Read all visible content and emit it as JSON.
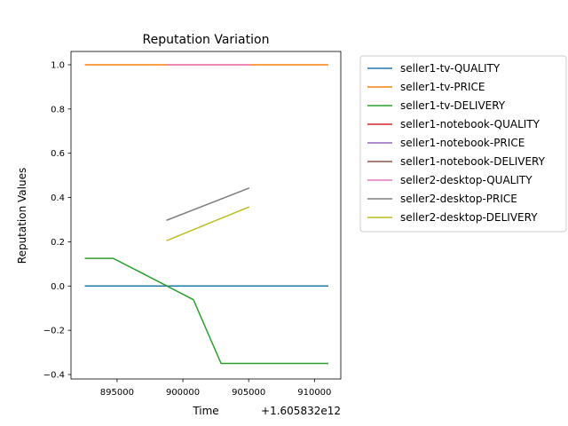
{
  "chart_data": {
    "type": "line",
    "title": "Reputation Variation",
    "xlabel": "Time",
    "ylabel": "Reputation Values",
    "x_offset_label": "+1.605832e12",
    "xlim": [
      891500,
      912000
    ],
    "ylim": [
      -0.42,
      1.06
    ],
    "x_ticks": [
      895000,
      900000,
      905000,
      910000
    ],
    "x_tick_labels": [
      "895000",
      "900000",
      "905000",
      "910000"
    ],
    "y_ticks": [
      -0.4,
      -0.2,
      0.0,
      0.2,
      0.4,
      0.6,
      0.8,
      1.0
    ],
    "y_tick_labels": [
      "−0.4",
      "−0.2",
      "0.0",
      "0.2",
      "0.4",
      "0.6",
      "0.8",
      "1.0"
    ],
    "grid": false,
    "legend_position": "outside-right",
    "series": [
      {
        "name": "seller1-tv-QUALITY",
        "color": "#1f77b4",
        "points": [
          [
            892600,
            0.0
          ],
          [
            911000,
            0.0
          ]
        ]
      },
      {
        "name": "seller1-tv-PRICE",
        "color": "#ff7f0e",
        "points": [
          [
            892600,
            1.0
          ],
          [
            911000,
            1.0
          ]
        ]
      },
      {
        "name": "seller1-tv-DELIVERY",
        "color": "#2ca02c",
        "points": [
          [
            892600,
            0.125
          ],
          [
            894700,
            0.125
          ],
          [
            898800,
            0.0
          ],
          [
            900800,
            -0.062
          ],
          [
            902900,
            -0.35
          ],
          [
            911000,
            -0.35
          ]
        ]
      },
      {
        "name": "seller1-notebook-QUALITY",
        "color": "#d62728",
        "points": []
      },
      {
        "name": "seller1-notebook-PRICE",
        "color": "#9467bd",
        "points": []
      },
      {
        "name": "seller1-notebook-DELIVERY",
        "color": "#8c564b",
        "points": []
      },
      {
        "name": "seller2-desktop-QUALITY",
        "color": "#e377c2",
        "points": [
          [
            898800,
            1.0
          ],
          [
            905000,
            1.0
          ]
        ]
      },
      {
        "name": "seller2-desktop-PRICE",
        "color": "#7f7f7f",
        "points": [
          [
            898800,
            0.298
          ],
          [
            905000,
            0.442
          ]
        ]
      },
      {
        "name": "seller2-desktop-DELIVERY",
        "color": "#bcbd22",
        "points": [
          [
            898800,
            0.206
          ],
          [
            905000,
            0.357
          ]
        ]
      }
    ]
  }
}
